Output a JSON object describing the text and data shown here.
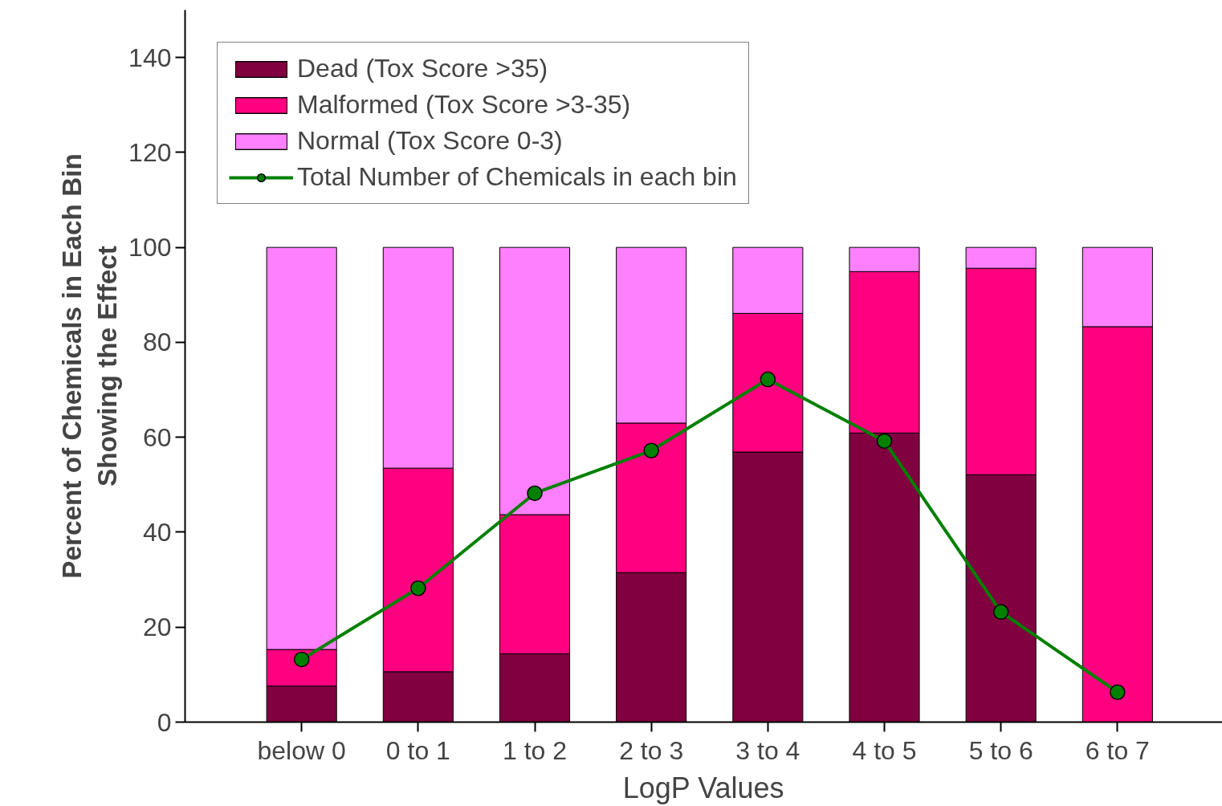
{
  "chart_data": {
    "type": "bar",
    "stacked": true,
    "xlabel": "LogP Values",
    "ylabel": "Percent of Chemicals in Each Bin\nShowing the Effect",
    "categories": [
      "below 0",
      "0 to 1",
      "1 to 2",
      "2 to 3",
      "3 to 4",
      "4 to 5",
      "5 to 6",
      "6 to 7"
    ],
    "series": [
      {
        "name": "Dead (Tox Score >35)",
        "color": "#800040",
        "values": [
          7.6,
          10.6,
          14.4,
          31.5,
          56.9,
          60.9,
          52.1,
          0
        ]
      },
      {
        "name": "Malformed (Tox Score >3-35)",
        "color": "#ff0080",
        "values": [
          7.7,
          42.9,
          29.3,
          31.5,
          29.2,
          34.0,
          43.5,
          83.3
        ]
      },
      {
        "name": "Normal (Tox Score 0-3)",
        "color": "#ff80ff",
        "values": [
          84.7,
          46.5,
          56.3,
          37.0,
          13.9,
          5.1,
          4.4,
          16.7
        ]
      },
      {
        "name": "Total Number of Chemicals in each bin",
        "type": "line",
        "color": "#008000",
        "marker": "circle",
        "values": [
          13.2,
          28.2,
          48.2,
          57.2,
          72.2,
          59.2,
          23.2,
          6.3
        ]
      }
    ],
    "ylim": [
      0,
      150
    ],
    "yticks": [
      0,
      20,
      40,
      60,
      80,
      100,
      120,
      140
    ],
    "grid": false,
    "legend": "top left"
  }
}
